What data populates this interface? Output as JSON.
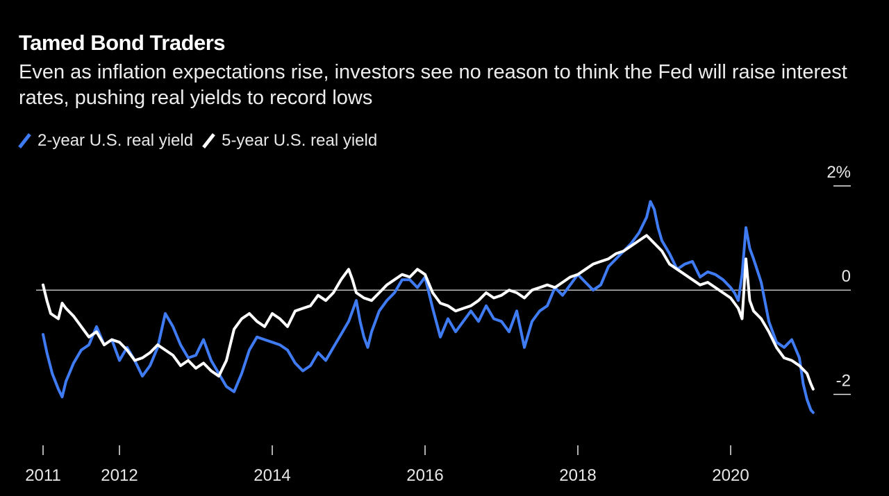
{
  "header": {
    "title": "Tamed Bond Traders",
    "subtitle": "Even as inflation expectations rise, investors see no reason to think the Fed will raise interest rates, pushing real yields to record lows"
  },
  "colors": {
    "background": "#000000",
    "series_2yr": "#3f7bf2",
    "series_5yr": "#ffffff",
    "zero_line": "#bdbdbd"
  },
  "chart_data": {
    "type": "line",
    "title": "Tamed Bond Traders",
    "subtitle": "Even as inflation expectations rise, investors see no reason to think the Fed will raise interest rates, pushing real yields to record lows",
    "xlabel": "",
    "ylabel": "",
    "xlim": [
      2011.0,
      2021.1
    ],
    "ylim": [
      -2.5,
      2.0
    ],
    "x_ticks": [
      2011,
      2012,
      2014,
      2016,
      2018,
      2020
    ],
    "x_tick_labels": [
      "2011",
      "2012",
      "2014",
      "2016",
      "2018",
      "2020"
    ],
    "y_ticks": [
      2,
      0,
      -2
    ],
    "y_tick_labels": [
      "2%",
      "0",
      "-2"
    ],
    "zero_line": true,
    "grid": false,
    "legend_position": "top-left",
    "series": [
      {
        "name": "2-year U.S. real yield",
        "color": "#3f7bf2",
        "points": [
          [
            2011.0,
            -0.85
          ],
          [
            2011.05,
            -1.2
          ],
          [
            2011.12,
            -1.6
          ],
          [
            2011.2,
            -1.9
          ],
          [
            2011.25,
            -2.05
          ],
          [
            2011.3,
            -1.75
          ],
          [
            2011.4,
            -1.4
          ],
          [
            2011.5,
            -1.15
          ],
          [
            2011.6,
            -1.05
          ],
          [
            2011.7,
            -0.7
          ],
          [
            2011.8,
            -1.05
          ],
          [
            2011.9,
            -0.95
          ],
          [
            2012.0,
            -1.35
          ],
          [
            2012.1,
            -1.1
          ],
          [
            2012.2,
            -1.35
          ],
          [
            2012.3,
            -1.65
          ],
          [
            2012.4,
            -1.45
          ],
          [
            2012.5,
            -1.1
          ],
          [
            2012.6,
            -0.45
          ],
          [
            2012.7,
            -0.7
          ],
          [
            2012.8,
            -1.05
          ],
          [
            2012.9,
            -1.3
          ],
          [
            2013.0,
            -1.25
          ],
          [
            2013.1,
            -0.95
          ],
          [
            2013.2,
            -1.35
          ],
          [
            2013.3,
            -1.6
          ],
          [
            2013.4,
            -1.85
          ],
          [
            2013.5,
            -1.95
          ],
          [
            2013.6,
            -1.6
          ],
          [
            2013.7,
            -1.15
          ],
          [
            2013.8,
            -0.9
          ],
          [
            2013.9,
            -0.95
          ],
          [
            2014.0,
            -1.0
          ],
          [
            2014.1,
            -1.05
          ],
          [
            2014.2,
            -1.15
          ],
          [
            2014.3,
            -1.4
          ],
          [
            2014.4,
            -1.55
          ],
          [
            2014.5,
            -1.45
          ],
          [
            2014.6,
            -1.2
          ],
          [
            2014.7,
            -1.35
          ],
          [
            2014.8,
            -1.1
          ],
          [
            2014.9,
            -0.85
          ],
          [
            2015.0,
            -0.6
          ],
          [
            2015.05,
            -0.4
          ],
          [
            2015.1,
            -0.2
          ],
          [
            2015.15,
            -0.6
          ],
          [
            2015.2,
            -0.9
          ],
          [
            2015.25,
            -1.1
          ],
          [
            2015.3,
            -0.8
          ],
          [
            2015.4,
            -0.4
          ],
          [
            2015.5,
            -0.2
          ],
          [
            2015.6,
            -0.05
          ],
          [
            2015.7,
            0.2
          ],
          [
            2015.8,
            0.2
          ],
          [
            2015.9,
            0.05
          ],
          [
            2016.0,
            0.25
          ],
          [
            2016.1,
            -0.35
          ],
          [
            2016.2,
            -0.9
          ],
          [
            2016.3,
            -0.55
          ],
          [
            2016.4,
            -0.8
          ],
          [
            2016.5,
            -0.6
          ],
          [
            2016.6,
            -0.4
          ],
          [
            2016.7,
            -0.6
          ],
          [
            2016.8,
            -0.3
          ],
          [
            2016.9,
            -0.55
          ],
          [
            2017.0,
            -0.6
          ],
          [
            2017.1,
            -0.8
          ],
          [
            2017.2,
            -0.4
          ],
          [
            2017.3,
            -1.1
          ],
          [
            2017.4,
            -0.6
          ],
          [
            2017.5,
            -0.4
          ],
          [
            2017.6,
            -0.3
          ],
          [
            2017.7,
            0.05
          ],
          [
            2017.8,
            -0.1
          ],
          [
            2017.9,
            0.1
          ],
          [
            2018.0,
            0.3
          ],
          [
            2018.1,
            0.15
          ],
          [
            2018.2,
            0.0
          ],
          [
            2018.3,
            0.1
          ],
          [
            2018.4,
            0.45
          ],
          [
            2018.5,
            0.6
          ],
          [
            2018.6,
            0.75
          ],
          [
            2018.7,
            0.9
          ],
          [
            2018.8,
            1.1
          ],
          [
            2018.9,
            1.4
          ],
          [
            2018.95,
            1.7
          ],
          [
            2019.0,
            1.55
          ],
          [
            2019.05,
            1.2
          ],
          [
            2019.1,
            0.95
          ],
          [
            2019.2,
            0.7
          ],
          [
            2019.3,
            0.4
          ],
          [
            2019.4,
            0.5
          ],
          [
            2019.5,
            0.55
          ],
          [
            2019.6,
            0.25
          ],
          [
            2019.7,
            0.35
          ],
          [
            2019.8,
            0.3
          ],
          [
            2019.9,
            0.2
          ],
          [
            2020.0,
            0.05
          ],
          [
            2020.05,
            -0.05
          ],
          [
            2020.1,
            -0.2
          ],
          [
            2020.15,
            0.3
          ],
          [
            2020.2,
            1.2
          ],
          [
            2020.25,
            0.8
          ],
          [
            2020.3,
            0.6
          ],
          [
            2020.4,
            0.15
          ],
          [
            2020.5,
            -0.6
          ],
          [
            2020.6,
            -1.0
          ],
          [
            2020.7,
            -1.1
          ],
          [
            2020.8,
            -0.95
          ],
          [
            2020.9,
            -1.3
          ],
          [
            2020.95,
            -1.8
          ],
          [
            2021.0,
            -2.1
          ],
          [
            2021.05,
            -2.3
          ],
          [
            2021.08,
            -2.35
          ]
        ]
      },
      {
        "name": "5-year U.S. real yield",
        "color": "#ffffff",
        "points": [
          [
            2011.0,
            0.1
          ],
          [
            2011.05,
            -0.2
          ],
          [
            2011.1,
            -0.45
          ],
          [
            2011.2,
            -0.55
          ],
          [
            2011.25,
            -0.25
          ],
          [
            2011.3,
            -0.35
          ],
          [
            2011.4,
            -0.5
          ],
          [
            2011.5,
            -0.7
          ],
          [
            2011.6,
            -0.9
          ],
          [
            2011.7,
            -0.8
          ],
          [
            2011.8,
            -1.05
          ],
          [
            2011.9,
            -0.95
          ],
          [
            2012.0,
            -1.0
          ],
          [
            2012.1,
            -1.15
          ],
          [
            2012.2,
            -1.35
          ],
          [
            2012.3,
            -1.3
          ],
          [
            2012.4,
            -1.2
          ],
          [
            2012.5,
            -1.05
          ],
          [
            2012.6,
            -1.15
          ],
          [
            2012.7,
            -1.25
          ],
          [
            2012.8,
            -1.45
          ],
          [
            2012.9,
            -1.35
          ],
          [
            2013.0,
            -1.5
          ],
          [
            2013.1,
            -1.4
          ],
          [
            2013.2,
            -1.55
          ],
          [
            2013.3,
            -1.65
          ],
          [
            2013.4,
            -1.35
          ],
          [
            2013.5,
            -0.75
          ],
          [
            2013.6,
            -0.55
          ],
          [
            2013.7,
            -0.45
          ],
          [
            2013.8,
            -0.6
          ],
          [
            2013.9,
            -0.7
          ],
          [
            2014.0,
            -0.45
          ],
          [
            2014.1,
            -0.55
          ],
          [
            2014.2,
            -0.7
          ],
          [
            2014.3,
            -0.4
          ],
          [
            2014.4,
            -0.35
          ],
          [
            2014.5,
            -0.3
          ],
          [
            2014.6,
            -0.1
          ],
          [
            2014.7,
            -0.2
          ],
          [
            2014.8,
            -0.05
          ],
          [
            2014.9,
            0.2
          ],
          [
            2015.0,
            0.4
          ],
          [
            2015.05,
            0.2
          ],
          [
            2015.1,
            -0.05
          ],
          [
            2015.2,
            -0.15
          ],
          [
            2015.3,
            -0.2
          ],
          [
            2015.4,
            -0.05
          ],
          [
            2015.5,
            0.1
          ],
          [
            2015.6,
            0.2
          ],
          [
            2015.7,
            0.3
          ],
          [
            2015.8,
            0.25
          ],
          [
            2015.9,
            0.4
          ],
          [
            2016.0,
            0.3
          ],
          [
            2016.1,
            -0.05
          ],
          [
            2016.2,
            -0.25
          ],
          [
            2016.3,
            -0.3
          ],
          [
            2016.4,
            -0.4
          ],
          [
            2016.5,
            -0.35
          ],
          [
            2016.6,
            -0.3
          ],
          [
            2016.7,
            -0.2
          ],
          [
            2016.8,
            -0.05
          ],
          [
            2016.9,
            -0.15
          ],
          [
            2017.0,
            -0.1
          ],
          [
            2017.1,
            0.0
          ],
          [
            2017.2,
            -0.05
          ],
          [
            2017.3,
            -0.15
          ],
          [
            2017.4,
            0.0
          ],
          [
            2017.5,
            0.05
          ],
          [
            2017.6,
            0.1
          ],
          [
            2017.7,
            0.05
          ],
          [
            2017.8,
            0.15
          ],
          [
            2017.9,
            0.25
          ],
          [
            2018.0,
            0.3
          ],
          [
            2018.1,
            0.4
          ],
          [
            2018.2,
            0.5
          ],
          [
            2018.3,
            0.55
          ],
          [
            2018.4,
            0.6
          ],
          [
            2018.5,
            0.7
          ],
          [
            2018.6,
            0.75
          ],
          [
            2018.7,
            0.85
          ],
          [
            2018.8,
            0.95
          ],
          [
            2018.9,
            1.05
          ],
          [
            2019.0,
            0.9
          ],
          [
            2019.1,
            0.75
          ],
          [
            2019.2,
            0.5
          ],
          [
            2019.3,
            0.4
          ],
          [
            2019.4,
            0.3
          ],
          [
            2019.5,
            0.2
          ],
          [
            2019.6,
            0.1
          ],
          [
            2019.7,
            0.15
          ],
          [
            2019.8,
            0.05
          ],
          [
            2019.9,
            -0.05
          ],
          [
            2020.0,
            -0.15
          ],
          [
            2020.1,
            -0.35
          ],
          [
            2020.15,
            -0.55
          ],
          [
            2020.2,
            0.6
          ],
          [
            2020.25,
            -0.2
          ],
          [
            2020.3,
            -0.4
          ],
          [
            2020.4,
            -0.55
          ],
          [
            2020.5,
            -0.8
          ],
          [
            2020.6,
            -1.1
          ],
          [
            2020.7,
            -1.3
          ],
          [
            2020.8,
            -1.35
          ],
          [
            2020.9,
            -1.45
          ],
          [
            2021.0,
            -1.6
          ],
          [
            2021.05,
            -1.8
          ],
          [
            2021.08,
            -1.9
          ]
        ]
      }
    ]
  }
}
